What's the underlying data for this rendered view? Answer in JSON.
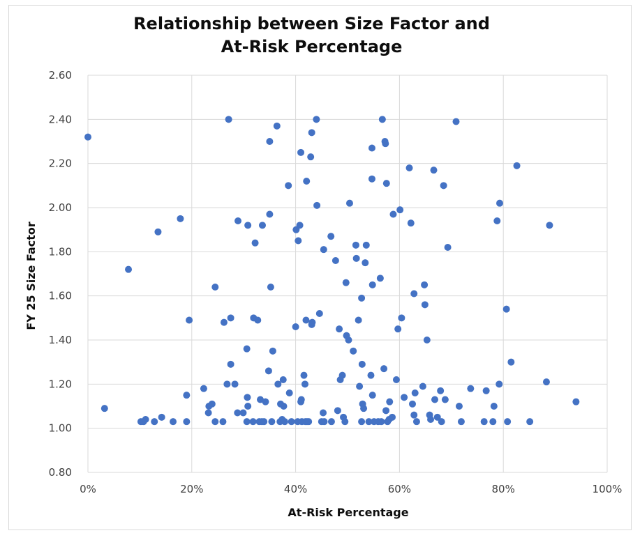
{
  "chart_data": {
    "type": "scatter",
    "title_lines": [
      "Relationship between Size Factor and",
      "At-Risk Percentage"
    ],
    "xlabel": "At-Risk Percentage",
    "ylabel": "FY 25 Size Factor",
    "xlim": [
      0,
      100
    ],
    "ylim": [
      0.8,
      2.6
    ],
    "x_ticks": [
      "0%",
      "20%",
      "40%",
      "60%",
      "80%",
      "100%"
    ],
    "y_ticks": [
      "0.80",
      "1.00",
      "1.20",
      "1.40",
      "1.60",
      "1.80",
      "2.00",
      "2.20",
      "2.40",
      "2.60"
    ],
    "grid": true,
    "legend": "none",
    "marker_color": "#4472c4",
    "points": [
      [
        0,
        2.32
      ],
      [
        3.2,
        1.09
      ],
      [
        7.8,
        1.72
      ],
      [
        13.5,
        1.89
      ],
      [
        17.8,
        1.95
      ],
      [
        19.5,
        1.49
      ],
      [
        19.0,
        1.15
      ],
      [
        10.2,
        1.03
      ],
      [
        10.7,
        1.03
      ],
      [
        11.1,
        1.04
      ],
      [
        12.8,
        1.03
      ],
      [
        14.2,
        1.05
      ],
      [
        16.4,
        1.03
      ],
      [
        19.0,
        1.03
      ],
      [
        22.3,
        1.18
      ],
      [
        23.2,
        1.07
      ],
      [
        23.3,
        1.1
      ],
      [
        23.9,
        1.11
      ],
      [
        24.5,
        1.03
      ],
      [
        24.5,
        1.64
      ],
      [
        26.0,
        1.03
      ],
      [
        26.2,
        1.48
      ],
      [
        26.8,
        1.2
      ],
      [
        27.1,
        2.4
      ],
      [
        27.5,
        1.29
      ],
      [
        27.5,
        1.5
      ],
      [
        28.3,
        1.2
      ],
      [
        28.8,
        1.07
      ],
      [
        28.9,
        1.94
      ],
      [
        29.9,
        1.07
      ],
      [
        30.6,
        1.03
      ],
      [
        30.6,
        1.36
      ],
      [
        30.7,
        1.14
      ],
      [
        30.8,
        1.1
      ],
      [
        30.8,
        1.92
      ],
      [
        31.8,
        1.03
      ],
      [
        31.9,
        1.5
      ],
      [
        32.2,
        1.84
      ],
      [
        32.7,
        1.49
      ],
      [
        33.0,
        1.03
      ],
      [
        33.2,
        1.13
      ],
      [
        33.5,
        1.03
      ],
      [
        33.6,
        1.92
      ],
      [
        33.9,
        1.03
      ],
      [
        34.2,
        1.12
      ],
      [
        34.8,
        1.26
      ],
      [
        35.0,
        1.97
      ],
      [
        35.0,
        2.3
      ],
      [
        35.2,
        1.64
      ],
      [
        35.4,
        1.03
      ],
      [
        35.6,
        1.35
      ],
      [
        36.4,
        2.37
      ],
      [
        36.6,
        1.2
      ],
      [
        37.0,
        1.03
      ],
      [
        37.1,
        1.11
      ],
      [
        37.4,
        1.04
      ],
      [
        37.6,
        1.22
      ],
      [
        37.7,
        1.1
      ],
      [
        37.9,
        1.03
      ],
      [
        38.6,
        2.1
      ],
      [
        38.8,
        1.16
      ],
      [
        39.2,
        1.03
      ],
      [
        40.0,
        1.46
      ],
      [
        40.1,
        1.9
      ],
      [
        40.4,
        1.03
      ],
      [
        40.5,
        1.85
      ],
      [
        40.8,
        1.92
      ],
      [
        41.0,
        1.12
      ],
      [
        41.0,
        2.25
      ],
      [
        41.1,
        1.13
      ],
      [
        41.2,
        1.03
      ],
      [
        41.6,
        1.24
      ],
      [
        41.8,
        1.2
      ],
      [
        41.9,
        1.03
      ],
      [
        42.0,
        1.49
      ],
      [
        42.1,
        2.12
      ],
      [
        42.2,
        1.03
      ],
      [
        42.5,
        1.03
      ],
      [
        42.9,
        2.23
      ],
      [
        43.1,
        1.47
      ],
      [
        43.1,
        2.34
      ],
      [
        43.2,
        1.48
      ],
      [
        44.0,
        2.4
      ],
      [
        44.1,
        2.01
      ],
      [
        44.6,
        1.52
      ],
      [
        45.0,
        1.03
      ],
      [
        45.3,
        1.07
      ],
      [
        45.4,
        1.81
      ],
      [
        45.5,
        1.03
      ],
      [
        46.8,
        1.87
      ],
      [
        46.9,
        1.03
      ],
      [
        47.7,
        1.76
      ],
      [
        48.1,
        1.08
      ],
      [
        48.4,
        1.45
      ],
      [
        48.6,
        1.22
      ],
      [
        49.0,
        1.24
      ],
      [
        49.2,
        1.05
      ],
      [
        49.5,
        1.03
      ],
      [
        49.7,
        1.66
      ],
      [
        49.8,
        1.42
      ],
      [
        50.2,
        1.4
      ],
      [
        50.4,
        2.02
      ],
      [
        51.1,
        1.35
      ],
      [
        51.6,
        1.83
      ],
      [
        51.7,
        1.77
      ],
      [
        52.1,
        1.49
      ],
      [
        52.3,
        1.19
      ],
      [
        52.7,
        1.03
      ],
      [
        52.7,
        1.59
      ],
      [
        52.8,
        1.29
      ],
      [
        52.9,
        1.11
      ],
      [
        53.1,
        1.09
      ],
      [
        53.4,
        1.75
      ],
      [
        53.6,
        1.83
      ],
      [
        54.1,
        1.03
      ],
      [
        54.5,
        1.24
      ],
      [
        54.7,
        2.27
      ],
      [
        54.7,
        2.13
      ],
      [
        54.8,
        1.65
      ],
      [
        54.8,
        1.15
      ],
      [
        55.1,
        1.03
      ],
      [
        55.9,
        1.03
      ],
      [
        56.3,
        1.68
      ],
      [
        56.5,
        1.03
      ],
      [
        56.7,
        2.4
      ],
      [
        57.0,
        1.27
      ],
      [
        57.2,
        2.3
      ],
      [
        57.3,
        2.29
      ],
      [
        57.4,
        1.08
      ],
      [
        57.5,
        2.11
      ],
      [
        57.7,
        1.03
      ],
      [
        58.0,
        1.04
      ],
      [
        58.1,
        1.12
      ],
      [
        58.6,
        1.05
      ],
      [
        58.8,
        1.97
      ],
      [
        59.4,
        1.22
      ],
      [
        59.7,
        1.45
      ],
      [
        60.1,
        1.99
      ],
      [
        60.4,
        1.5
      ],
      [
        60.9,
        1.14
      ],
      [
        61.9,
        2.18
      ],
      [
        62.2,
        1.93
      ],
      [
        62.5,
        1.11
      ],
      [
        62.8,
        1.06
      ],
      [
        62.8,
        1.61
      ],
      [
        63.0,
        1.16
      ],
      [
        63.3,
        1.03
      ],
      [
        64.5,
        1.19
      ],
      [
        64.8,
        1.65
      ],
      [
        64.9,
        1.56
      ],
      [
        65.3,
        1.4
      ],
      [
        65.8,
        1.06
      ],
      [
        66.0,
        1.04
      ],
      [
        66.6,
        2.17
      ],
      [
        66.8,
        1.13
      ],
      [
        67.3,
        1.05
      ],
      [
        67.9,
        1.17
      ],
      [
        68.1,
        1.03
      ],
      [
        68.5,
        2.1
      ],
      [
        68.8,
        1.13
      ],
      [
        69.3,
        1.82
      ],
      [
        70.9,
        2.39
      ],
      [
        71.5,
        1.1
      ],
      [
        71.9,
        1.03
      ],
      [
        73.7,
        1.18
      ],
      [
        76.3,
        1.03
      ],
      [
        76.7,
        1.17
      ],
      [
        78.0,
        1.03
      ],
      [
        78.2,
        1.1
      ],
      [
        78.8,
        1.94
      ],
      [
        79.2,
        1.2
      ],
      [
        79.3,
        2.02
      ],
      [
        80.6,
        1.54
      ],
      [
        80.8,
        1.03
      ],
      [
        81.5,
        1.3
      ],
      [
        82.6,
        2.19
      ],
      [
        85.1,
        1.03
      ],
      [
        88.3,
        1.21
      ],
      [
        88.9,
        1.92
      ],
      [
        94.0,
        1.12
      ]
    ]
  }
}
